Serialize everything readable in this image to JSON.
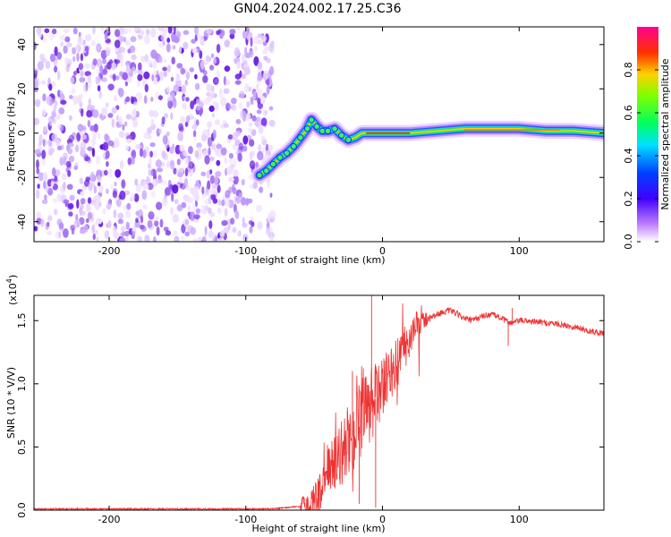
{
  "title": "GN04.2024.002.17.25.C36",
  "chart_data": [
    {
      "type": "heatmap",
      "xlabel": "Height of straight line (km)",
      "ylabel": "Frequency (Hz)",
      "xlim": [
        -255,
        162
      ],
      "ylim": [
        -49,
        48
      ],
      "xticks": [
        -200,
        -100,
        0,
        100
      ],
      "yticks": [
        -40,
        -20,
        0,
        20,
        40
      ],
      "noise_region_x": [
        -255,
        -80
      ],
      "ridge": {
        "x": [
          -90,
          -85,
          -80,
          -75,
          -70,
          -65,
          -60,
          -55,
          -52,
          -48,
          -44,
          -40,
          -35,
          -30,
          -25,
          -20,
          -15,
          -10,
          0,
          10,
          20,
          40,
          60,
          80,
          100,
          120,
          140,
          162
        ],
        "y": [
          -19,
          -17,
          -14,
          -11,
          -9,
          -6,
          -2,
          2,
          6,
          3,
          1,
          1,
          2,
          -1,
          -3,
          -2,
          0,
          0,
          0,
          0,
          0,
          1,
          2,
          2,
          2,
          1,
          1,
          0
        ]
      },
      "colorbar": {
        "label": "Normalized spectral amplitude",
        "range": [
          0,
          1
        ],
        "ticks": [
          "0.0",
          "0.2",
          "0.4",
          "0.6",
          "0.8"
        ],
        "colormap": [
          "#ffffff",
          "#8a2be2",
          "#0000ff",
          "#00ffff",
          "#00ff00",
          "#ffff00",
          "#ff8000",
          "#ff0000",
          "#ff00ff"
        ]
      }
    },
    {
      "type": "line",
      "xlabel": "Height of straight line (km)",
      "ylabel": "SNR (10 * V/V)",
      "scale_label": "(x10",
      "scale_exp": "4",
      "scale_close": ")",
      "xlim": [
        -255,
        162
      ],
      "ylim": [
        0,
        1.7
      ],
      "xticks": [
        -200,
        -100,
        0,
        100
      ],
      "yticks": [
        "0.0",
        "0.5",
        "1.0",
        "1.5"
      ],
      "color": "#ee3333",
      "series": [
        {
          "x": [
            -255,
            -200,
            -150,
            -100,
            -80,
            -70,
            -60,
            -55,
            -50,
            -45,
            -40,
            -35,
            -30,
            -25,
            -20,
            -15,
            -10,
            -5,
            0,
            5,
            10,
            15,
            20,
            25,
            30,
            35,
            40,
            45,
            50,
            55,
            60,
            65,
            70,
            75,
            80,
            85,
            90,
            95,
            100,
            105,
            110,
            115,
            120,
            125,
            130,
            135,
            140,
            145,
            150,
            155,
            162
          ],
          "values": [
            0.01,
            0.01,
            0.01,
            0.01,
            0.01,
            0.02,
            0.03,
            0.05,
            0.08,
            0.15,
            0.28,
            0.4,
            0.45,
            0.55,
            0.6,
            0.7,
            0.8,
            0.88,
            0.95,
            1.05,
            1.15,
            1.25,
            1.35,
            1.45,
            1.5,
            1.53,
            1.55,
            1.57,
            1.58,
            1.55,
            1.52,
            1.5,
            1.52,
            1.54,
            1.55,
            1.53,
            1.5,
            1.48,
            1.5,
            1.5,
            1.49,
            1.49,
            1.48,
            1.48,
            1.47,
            1.46,
            1.45,
            1.44,
            1.42,
            1.41,
            1.4
          ]
        }
      ]
    }
  ]
}
